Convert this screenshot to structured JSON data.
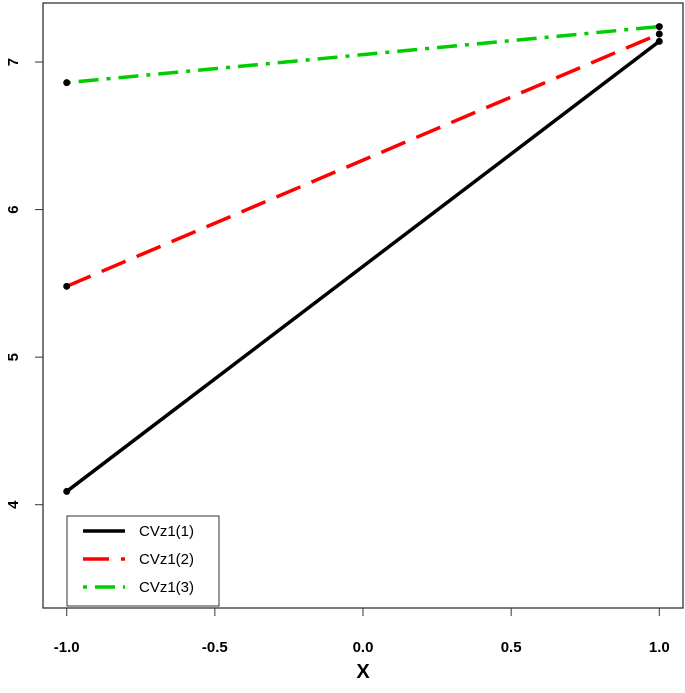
{
  "chart_data": {
    "type": "line",
    "x_label": "X",
    "x": [
      -1,
      1
    ],
    "series": [
      {
        "name": "CVz1(1)",
        "color": "#000000",
        "linestyle": "solid",
        "values": [
          4.09,
          7.14
        ]
      },
      {
        "name": "CVz1(2)",
        "color": "#ff0000",
        "linestyle": "dashed",
        "values": [
          5.48,
          7.19
        ]
      },
      {
        "name": "CVz1(3)",
        "color": "#00cd00",
        "linestyle": "dotdash",
        "values": [
          6.86,
          7.24
        ]
      }
    ],
    "xlim": [
      -1.08,
      1.08
    ],
    "xticks": [
      {
        "value": -1,
        "label": "-1.0"
      },
      -0.5,
      {
        "value": 0,
        "label": "0.0"
      },
      0.5,
      {
        "value": 1,
        "label": "1.0"
      }
    ],
    "ylim": [
      3.3,
      7.4
    ],
    "yticks": [
      4,
      5,
      6,
      7
    ],
    "legend": "bottom-left",
    "point_color": "#000000"
  }
}
